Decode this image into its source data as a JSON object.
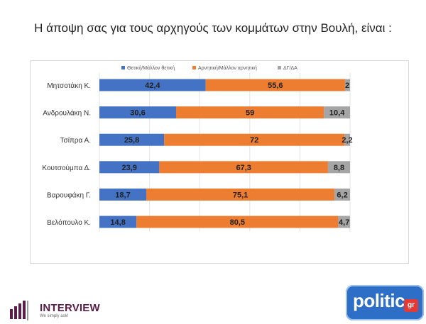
{
  "page": {
    "title": "Η άποψη σας για τους αρχηγούς των κομμάτων στην Βουλή,  είναι :"
  },
  "logos": {
    "interview_word": "INTERVIEW",
    "interview_tagline": "We simply ask!",
    "politic_word": "politic",
    "politic_badge": "gr"
  },
  "chart_data": {
    "type": "bar",
    "orientation": "horizontal",
    "stacked": true,
    "title": "",
    "xlabel": "",
    "ylabel": "",
    "xlim": [
      0,
      100
    ],
    "grid": true,
    "legend_position": "top",
    "categories": [
      "Μητσοτάκη Κ.",
      "Ανδρουλάκη Ν.",
      "Τσίπρα Α.",
      "Κουτσούμπα Δ.",
      "Βαρουφάκη Γ.",
      "Βελόπουλο Κ."
    ],
    "series": [
      {
        "name": "Θετική/Μάλλον θετική",
        "color": "#4472c4",
        "values": [
          42.4,
          30.6,
          25.8,
          23.9,
          18.7,
          14.8
        ]
      },
      {
        "name": "Αρνητική/Μάλλον αρνητική",
        "color": "#ed7d31",
        "values": [
          55.6,
          59,
          72,
          67.3,
          75.1,
          80.5
        ]
      },
      {
        "name": "ΔΓ/ΔΑ",
        "color": "#a5a5a5",
        "values": [
          2,
          10.4,
          2.2,
          8.8,
          6.2,
          4.7
        ]
      }
    ],
    "value_labels": [
      [
        "42,4",
        "55,6",
        "2"
      ],
      [
        "30,6",
        "59",
        "10,4"
      ],
      [
        "25,8",
        "72",
        "2,2"
      ],
      [
        "23,9",
        "67,3",
        "8,8"
      ],
      [
        "18,7",
        "75,1",
        "6,2"
      ],
      [
        "14,8",
        "80,5",
        "4,7"
      ]
    ]
  }
}
